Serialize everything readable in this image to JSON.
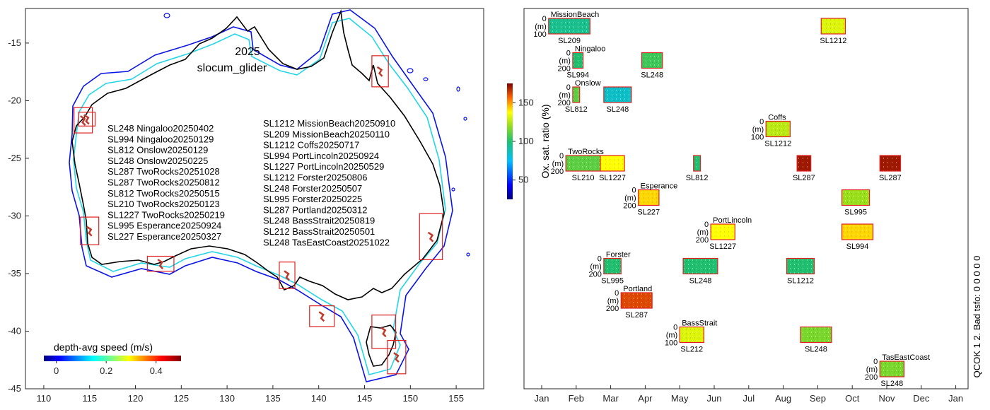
{
  "chart_data": [
    {
      "type": "map",
      "panel": "left",
      "title": "2025",
      "subtitle": "slocum_glider",
      "xlim": [
        108,
        158
      ],
      "ylim": [
        -45,
        -12
      ],
      "xticks": [
        110,
        115,
        120,
        125,
        130,
        135,
        140,
        145,
        150,
        155
      ],
      "yticks": [
        -15,
        -20,
        -25,
        -30,
        -35,
        -40,
        -45
      ],
      "deployments_left": [
        "SL248 Ningaloo20250402",
        "SL994 Ningaloo20250129",
        "SL812 Onslow20250129",
        "SL248 Onslow20250225",
        "SL287 TwoRocks20251028",
        "SL287 TwoRocks20250812",
        "SL812 TwoRocks20250515",
        "SL210 TwoRocks20250123",
        "SL1227 TwoRocks20250219",
        "SL995 Esperance20250924",
        "SL227 Esperance20250327"
      ],
      "deployments_right": [
        "SL1212 MissionBeach20250910",
        "SL209 MissionBeach20250110",
        "SL1212 Coffs20250717",
        "SL994 PortLincoln20250924",
        "SL1227 PortLincoln20250529",
        "SL1212 Forster20250806",
        "SL248 Forster20250507",
        "SL995 Forster20250225",
        "SL287 Portland20250312",
        "SL248 BassStrait20250819",
        "SL212 BassStrait20250501",
        "SL248 TasEastCoast20251022"
      ],
      "regions": [
        {
          "name": "Ningaloo",
          "lon": [
            113.3,
            115.3
          ],
          "lat": [
            -22.8,
            -20.6
          ]
        },
        {
          "name": "Onslow",
          "lon": [
            113.8,
            115.6
          ],
          "lat": [
            -22.2,
            -21.0
          ]
        },
        {
          "name": "TwoRocks",
          "lon": [
            114.0,
            116.0
          ],
          "lat": [
            -32.5,
            -30.1
          ]
        },
        {
          "name": "Esperance",
          "lon": [
            121.3,
            124.2
          ],
          "lat": [
            -34.8,
            -33.5
          ]
        },
        {
          "name": "PortLincoln",
          "lon": [
            135.7,
            137.4
          ],
          "lat": [
            -36.3,
            -34.0
          ]
        },
        {
          "name": "Portland",
          "lon": [
            139.0,
            141.7
          ],
          "lat": [
            -39.6,
            -37.8
          ]
        },
        {
          "name": "BassStrait",
          "lon": [
            145.8,
            148.4
          ],
          "lat": [
            -41.5,
            -38.6
          ]
        },
        {
          "name": "TasEastCoast",
          "lon": [
            147.5,
            149.5
          ],
          "lat": [
            -43.7,
            -40.8
          ]
        },
        {
          "name": "Forster",
          "lon": [
            151.0,
            153.5
          ],
          "lat": [
            -33.8,
            -29.8
          ]
        },
        {
          "name": "MissionBeach",
          "lon": [
            145.8,
            147.6
          ],
          "lat": [
            -18.8,
            -16.1
          ]
        }
      ],
      "colorbar": {
        "label": "depth-avg speed (m/s)",
        "ticks": [
          "0",
          "0.2",
          "0.4"
        ],
        "range": [
          -0.05,
          0.5
        ]
      }
    },
    {
      "type": "timeline",
      "panel": "right",
      "months": [
        "Jan",
        "Feb",
        "Mar",
        "Apr",
        "May",
        "Jun",
        "Jul",
        "Aug",
        "Sep",
        "Oct",
        "Nov",
        "Dec",
        "Jan"
      ],
      "ylabel": "(m)",
      "colorbar": {
        "label": "Ox. sat. ratio (%)",
        "ticks": [
          "50",
          "100",
          "150"
        ],
        "range": [
          25,
          175
        ]
      },
      "sites": [
        {
          "name": "MissionBeach",
          "depth_top": "0",
          "depth_bottom": "100",
          "deployments": [
            {
              "glider": "SL209",
              "start": 0.2,
              "end": 1.4,
              "value": 95
            },
            {
              "glider": "SL1212",
              "start": 8.1,
              "end": 8.8,
              "value": 130
            }
          ]
        },
        {
          "name": "Ningaloo",
          "depth_top": "0",
          "depth_bottom": "200",
          "deployments": [
            {
              "glider": "SL994",
              "start": 0.9,
              "end": 1.2,
              "value": 100
            },
            {
              "glider": "SL248",
              "start": 2.9,
              "end": 3.5,
              "value": 105
            }
          ]
        },
        {
          "name": "Onslow",
          "depth_top": "0",
          "depth_bottom": "200",
          "deployments": [
            {
              "glider": "SL812",
              "start": 0.9,
              "end": 1.1,
              "value": 110
            },
            {
              "glider": "SL248",
              "start": 1.8,
              "end": 2.6,
              "value": 85
            }
          ]
        },
        {
          "name": "Coffs",
          "depth_top": "0",
          "depth_bottom": "100",
          "deployments": [
            {
              "glider": "SL1212",
              "start": 6.5,
              "end": 7.2,
              "value": 125
            }
          ]
        },
        {
          "name": "TwoRocks",
          "depth_top": "0",
          "depth_bottom": "200",
          "deployments": [
            {
              "glider": "SL210",
              "start": 0.7,
              "end": 1.7,
              "value": 110
            },
            {
              "glider": "SL1227",
              "start": 1.7,
              "end": 2.4,
              "value": 135
            },
            {
              "glider": "SL812",
              "start": 4.4,
              "end": 4.6,
              "value": 100
            },
            {
              "glider": "SL287",
              "start": 7.4,
              "end": 7.8,
              "value": 170
            },
            {
              "glider": "SL287",
              "start": 9.8,
              "end": 10.4,
              "value": 170
            }
          ]
        },
        {
          "name": "Esperance",
          "depth_top": "0",
          "depth_bottom": "200",
          "deployments": [
            {
              "glider": "SL227",
              "start": 2.8,
              "end": 3.4,
              "value": 140
            },
            {
              "glider": "SL995",
              "start": 8.7,
              "end": 9.5,
              "value": 120
            }
          ]
        },
        {
          "name": "PortLincoln",
          "depth_top": "0",
          "depth_bottom": "200",
          "deployments": [
            {
              "glider": "SL1227",
              "start": 4.9,
              "end": 5.6,
              "value": 135
            },
            {
              "glider": "SL994",
              "start": 8.7,
              "end": 9.6,
              "value": 140
            }
          ]
        },
        {
          "name": "Forster",
          "depth_top": "0",
          "depth_bottom": "200",
          "deployments": [
            {
              "glider": "SL995",
              "start": 1.8,
              "end": 2.3,
              "value": 100
            },
            {
              "glider": "SL248",
              "start": 4.1,
              "end": 5.1,
              "value": 100
            },
            {
              "glider": "SL1212",
              "start": 7.1,
              "end": 7.9,
              "value": 100
            }
          ]
        },
        {
          "name": "Portland",
          "depth_top": "0",
          "depth_bottom": "200",
          "deployments": [
            {
              "glider": "SL287",
              "start": 2.3,
              "end": 3.2,
              "value": 160
            }
          ]
        },
        {
          "name": "BassStrait",
          "depth_top": "0",
          "depth_bottom": "100",
          "deployments": [
            {
              "glider": "SL212",
              "start": 4.0,
              "end": 4.7,
              "value": 130
            },
            {
              "glider": "SL248",
              "start": 7.5,
              "end": 8.4,
              "value": 115
            }
          ]
        },
        {
          "name": "TasEastCoast",
          "depth_top": "0",
          "depth_bottom": "200",
          "deployments": [
            {
              "glider": "SL248",
              "start": 9.8,
              "end": 10.5,
              "value": 115
            }
          ]
        }
      ]
    }
  ],
  "qc_label": "QCOK 1  2. Bad tsfo: 0  0  0  0  0"
}
